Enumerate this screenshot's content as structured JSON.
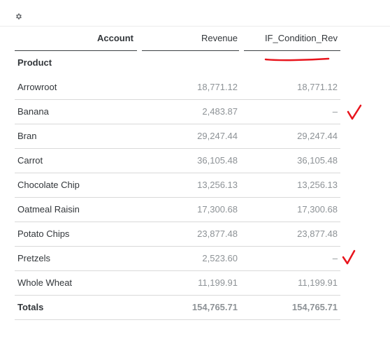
{
  "toolbar": {
    "settings_icon": "gear-icon"
  },
  "table": {
    "columns": {
      "account": "Account",
      "revenue": "Revenue",
      "if_condition": "IF_Condition_Rev"
    },
    "group_label": "Product",
    "rows": [
      {
        "name": "Arrowroot",
        "revenue": "18,771.12",
        "if_condition": "18,771.12"
      },
      {
        "name": "Banana",
        "revenue": "2,483.87",
        "if_condition": "–"
      },
      {
        "name": "Bran",
        "revenue": "29,247.44",
        "if_condition": "29,247.44"
      },
      {
        "name": "Carrot",
        "revenue": "36,105.48",
        "if_condition": "36,105.48"
      },
      {
        "name": "Chocolate Chip",
        "revenue": "13,256.13",
        "if_condition": "13,256.13"
      },
      {
        "name": "Oatmeal Raisin",
        "revenue": "17,300.68",
        "if_condition": "17,300.68"
      },
      {
        "name": "Potato Chips",
        "revenue": "23,877.48",
        "if_condition": "23,877.48"
      },
      {
        "name": "Pretzels",
        "revenue": "2,523.60",
        "if_condition": "–"
      },
      {
        "name": "Whole Wheat",
        "revenue": "11,199.91",
        "if_condition": "11,199.91"
      }
    ],
    "totals": {
      "name": "Totals",
      "revenue": "154,765.71",
      "if_condition": "154,765.71"
    }
  },
  "annotation_color": "#e8141c"
}
